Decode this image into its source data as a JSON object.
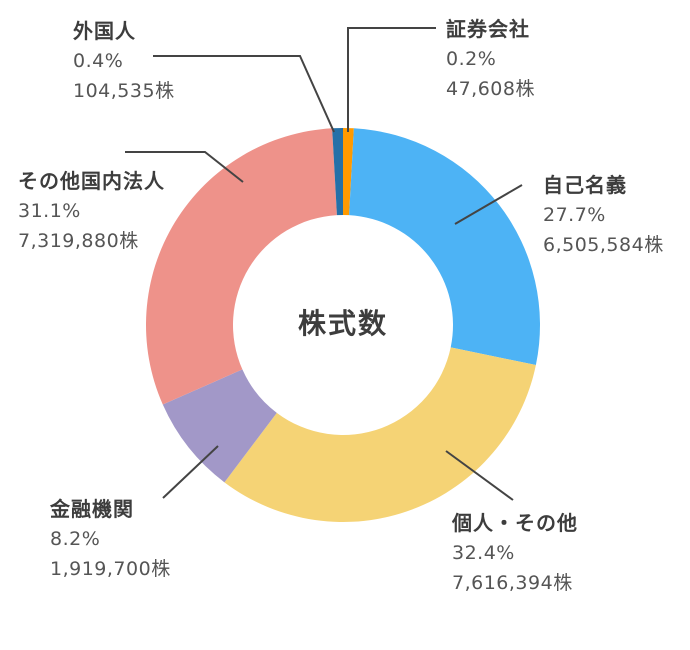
{
  "chart_data": {
    "type": "pie",
    "subtype": "donut",
    "title": "株式数",
    "unit": "株",
    "start_angle": "12 o'clock, clockwise",
    "categories": [
      "証券会社",
      "自己名義",
      "個人・その他",
      "金融機関",
      "その他国内法人",
      "外国人"
    ],
    "percentages": [
      0.2,
      27.7,
      32.4,
      8.2,
      31.1,
      0.4
    ],
    "values": [
      47608,
      6505584,
      7616394,
      1919700,
      7319880,
      104535
    ],
    "colors": [
      "#FF9A00",
      "#4DB3F5",
      "#F5D375",
      "#A298C8",
      "#EE928A",
      "#2470A8"
    ]
  },
  "center_label": "株式数",
  "labels": [
    {
      "name": "証券会社",
      "pct": "0.2%",
      "shares": "47,608株"
    },
    {
      "name": "自己名義",
      "pct": "27.7%",
      "shares": "6,505,584株"
    },
    {
      "name": "個人・その他",
      "pct": "32.4%",
      "shares": "7,616,394株"
    },
    {
      "name": "金融機関",
      "pct": "8.2%",
      "shares": "1,919,700株"
    },
    {
      "name": "その他国内法人",
      "pct": "31.1%",
      "shares": "7,319,880株"
    },
    {
      "name": "外国人",
      "pct": "0.4%",
      "shares": "104,535株"
    }
  ]
}
